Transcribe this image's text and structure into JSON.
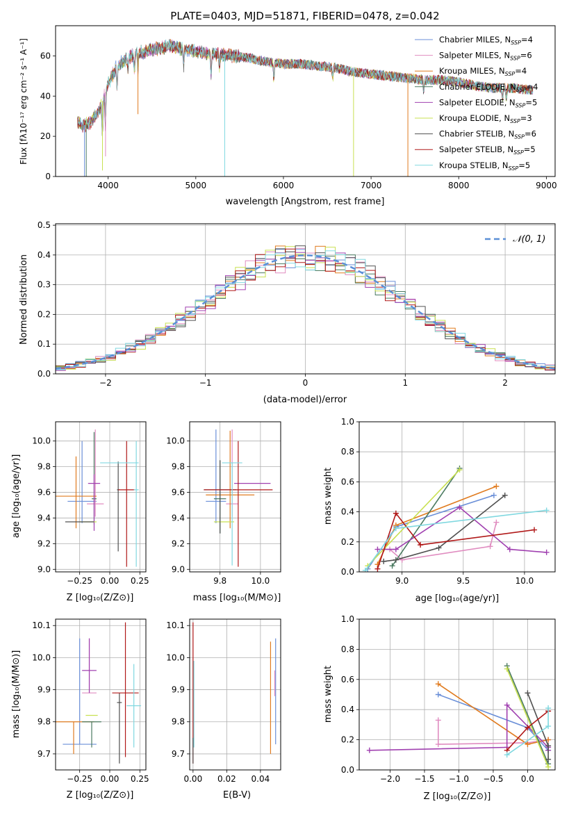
{
  "colors": {
    "series": [
      "#6a8fd8",
      "#e08cc0",
      "#e07b1f",
      "#4a7a60",
      "#a040b0",
      "#c8e050",
      "#505050",
      "#b01818",
      "#80d8e0"
    ]
  },
  "chart_data": [
    {
      "id": "spectrum",
      "type": "line",
      "title": "PLATE=0403, MJD=51871, FIBERID=0478, z=0.042",
      "xlabel": "wavelength [Angstrom, rest frame]",
      "ylabel": "Flux [fλ10⁻¹⁷ erg cm⁻² s⁻¹ A⁻¹]",
      "xlim": [
        3400,
        9100
      ],
      "ylim": [
        0,
        75
      ],
      "xticks": [
        4000,
        5000,
        6000,
        7000,
        8000,
        9000
      ],
      "yticks": [
        0,
        20,
        40,
        60
      ],
      "grid": false,
      "legend_position": "upper-right",
      "continuum": {
        "x": [
          3650,
          3700,
          3800,
          3900,
          4000,
          4100,
          4200,
          4300,
          4400,
          4500,
          4600,
          4700,
          4800,
          4900,
          5000,
          5200,
          5400,
          5600,
          5800,
          6000,
          6200,
          6400,
          6600,
          6800,
          7000,
          7200,
          7400,
          7600,
          7800,
          8000,
          8200,
          8400,
          8600,
          8850
        ],
        "y": [
          28,
          25,
          27,
          33,
          46,
          55,
          58,
          61,
          62,
          63,
          64,
          65,
          64,
          63,
          62,
          61,
          60,
          59,
          57,
          56,
          56,
          55,
          54,
          52,
          51,
          50,
          49,
          48,
          48,
          47,
          45,
          44,
          44,
          43
        ]
      },
      "dips": [
        {
          "x": 3730,
          "y": 0,
          "series": 0
        },
        {
          "x": 3750,
          "y": 0,
          "series": 3
        },
        {
          "x": 3935,
          "y": 3,
          "series": 5
        },
        {
          "x": 3970,
          "y": 10,
          "series": 1
        },
        {
          "x": 4340,
          "y": 31,
          "series": 2
        },
        {
          "x": 5330,
          "y": 0,
          "series": 8
        },
        {
          "x": 6800,
          "y": 0,
          "series": 5
        },
        {
          "x": 7420,
          "y": 0,
          "series": 2
        }
      ],
      "series": [
        {
          "name": "Chabrier MILES, N_SSP=4"
        },
        {
          "name": "Salpeter MILES, N_SSP=6"
        },
        {
          "name": "Kroupa MILES, N_SSP=4"
        },
        {
          "name": "Chabrier ELODIE, N_SSP=4"
        },
        {
          "name": "Salpeter ELODIE, N_SSP=5"
        },
        {
          "name": "Kroupa ELODIE, N_SSP=3"
        },
        {
          "name": "Chabrier STELIB, N_SSP=6"
        },
        {
          "name": "Salpeter STELIB, N_SSP=5"
        },
        {
          "name": "Kroupa STELIB, N_SSP=5"
        }
      ],
      "legend": [
        {
          "label": "Chabrier MILES, N",
          "sub": "SSP",
          "val": "=4"
        },
        {
          "label": "Salpeter MILES, N",
          "sub": "SSP",
          "val": "=6"
        },
        {
          "label": "Kroupa MILES, N",
          "sub": "SSP",
          "val": "=4"
        },
        {
          "label": "Chabrier ELODIE, N",
          "sub": "SSP",
          "val": "=4"
        },
        {
          "label": "Salpeter ELODIE, N",
          "sub": "SSP",
          "val": "=5"
        },
        {
          "label": "Kroupa ELODIE, N",
          "sub": "SSP",
          "val": "=3"
        },
        {
          "label": "Chabrier STELIB, N",
          "sub": "SSP",
          "val": "=6"
        },
        {
          "label": "Salpeter STELIB, N",
          "sub": "SSP",
          "val": "=5"
        },
        {
          "label": "Kroupa STELIB, N",
          "sub": "SSP",
          "val": "=5"
        }
      ]
    },
    {
      "id": "residuals",
      "type": "line",
      "xlabel": "(data-model)/error",
      "ylabel": "Normed distribution",
      "xlim": [
        -2.5,
        2.5
      ],
      "ylim": [
        0,
        0.505
      ],
      "xticks": [
        -2,
        -1,
        0,
        1,
        2
      ],
      "yticks": [
        0.0,
        0.1,
        0.2,
        0.3,
        0.4,
        0.5
      ],
      "grid": true,
      "legend_position": "upper-right",
      "legend": [
        {
          "label": "𝒩(0, 1)"
        }
      ],
      "gaussian": {
        "mu": 0,
        "sigma": 1
      },
      "bin_width": 0.1
    },
    {
      "id": "age-vs-Z",
      "type": "scatter",
      "xlabel": "Z [log₁₀(Z/Z⊙)]",
      "ylabel": "age  [log₁₀(age/yr)]",
      "xlim": [
        -0.45,
        0.3
      ],
      "ylim": [
        8.98,
        10.15
      ],
      "xticks": [
        -0.25,
        0.0,
        0.25
      ],
      "yticks": [
        9.0,
        9.2,
        9.4,
        9.6,
        9.8,
        10.0
      ],
      "grid": true,
      "points": [
        {
          "x": -0.23,
          "xe": 0.12,
          "y": 9.53,
          "ye_lo": 0.17,
          "ye_hi": 0.47,
          "series": 0
        },
        {
          "x": -0.12,
          "xe": 0.07,
          "y": 9.51,
          "ye_lo": 0.1,
          "ye_hi": 0.58,
          "series": 1
        },
        {
          "x": -0.28,
          "xe": 0.17,
          "y": 9.57,
          "ye_lo": 0.25,
          "ye_hi": 0.31,
          "series": 2
        },
        {
          "x": -0.13,
          "xe": 0.02,
          "y": 9.55,
          "ye_lo": 0.2,
          "ye_hi": 0.52,
          "series": 3
        },
        {
          "x": -0.13,
          "xe": 0.05,
          "y": 9.67,
          "ye_lo": 0.37,
          "ye_hi": 0.07,
          "series": 4
        },
        {
          "x": -0.18,
          "xe": 0.07,
          "y": 9.37,
          "ye_lo": 0.0,
          "ye_hi": 0.0,
          "series": 5
        },
        {
          "x": -0.25,
          "xe": 0.12,
          "y": 9.37,
          "ye_lo": 0.0,
          "ye_hi": 0.0,
          "series": 6
        },
        {
          "x": 0.07,
          "xe": 0.01,
          "y": 9.62,
          "ye_lo": 0.48,
          "ye_hi": 0.22,
          "series": 6
        },
        {
          "x": 0.14,
          "xe": 0.07,
          "y": 9.62,
          "ye_lo": 0.6,
          "ye_hi": 0.38,
          "series": 7
        },
        {
          "x": 0.08,
          "xe": 0.16,
          "y": 9.83,
          "ye_lo": 0.0,
          "ye_hi": 0.0,
          "series": 8
        },
        {
          "x": 0.22,
          "xe": 0.02,
          "y": 9.62,
          "ye_lo": 0.6,
          "ye_hi": 0.38,
          "series": 8
        }
      ]
    },
    {
      "id": "age-vs-mass",
      "type": "scatter",
      "xlabel": "mass [log₁₀(M/M⊙)]",
      "ylabel": "",
      "xlim": [
        9.65,
        10.1
      ],
      "ylim": [
        8.98,
        10.15
      ],
      "xticks": [
        9.8,
        10.0
      ],
      "yticks": [
        9.0,
        9.2,
        9.4,
        9.6,
        9.8,
        10.0
      ],
      "grid": true,
      "points": [
        {
          "x": 9.78,
          "xe": 0.05,
          "y": 9.53,
          "ye_lo": 0.17,
          "ye_hi": 0.56,
          "series": 0
        },
        {
          "x": 9.86,
          "xe": 0.03,
          "y": 9.51,
          "ye_lo": 0.1,
          "ye_hi": 0.58,
          "series": 1
        },
        {
          "x": 9.85,
          "xe": 0.12,
          "y": 9.58,
          "ye_lo": 0.26,
          "ye_hi": 0.5,
          "series": 2
        },
        {
          "x": 9.8,
          "xe": 0.03,
          "y": 9.55,
          "ye_lo": 0.27,
          "ye_hi": 0.3,
          "series": 3
        },
        {
          "x": 9.96,
          "xe": 0.09,
          "y": 9.67,
          "ye_lo": 0.0,
          "ye_hi": 0.0,
          "series": 4
        },
        {
          "x": 9.82,
          "xe": 0.05,
          "y": 9.37,
          "ye_lo": 0.0,
          "ye_hi": 0.0,
          "series": 5
        },
        {
          "x": 9.8,
          "xe": 0.08,
          "y": 9.62,
          "ye_lo": 0.34,
          "ye_hi": 0.23,
          "series": 6
        },
        {
          "x": 9.89,
          "xe": 0.17,
          "y": 9.62,
          "ye_lo": 0.6,
          "ye_hi": 0.38,
          "series": 7
        },
        {
          "x": 9.86,
          "xe": 0.05,
          "y": 9.83,
          "ye_lo": 0.8,
          "ye_hi": 0.0,
          "series": 8
        }
      ]
    },
    {
      "id": "weight-vs-age",
      "type": "line",
      "xlabel": "age  [log₁₀(age/yr)]",
      "ylabel": "mass weight",
      "xlim": [
        8.65,
        10.25
      ],
      "ylim": [
        0,
        1
      ],
      "xticks": [
        9.0,
        9.5,
        10.0
      ],
      "yticks": [
        0.0,
        0.2,
        0.4,
        0.6,
        0.8,
        1.0
      ],
      "grid": true,
      "series": [
        {
          "x": [
            8.72,
            8.95,
            9.75
          ],
          "y": [
            0.02,
            0.3,
            0.51
          ],
          "ci": 0
        },
        {
          "x": [
            8.9,
            9.0,
            9.72,
            9.77
          ],
          "y": [
            0.15,
            0.08,
            0.17,
            0.33
          ],
          "ci": 1
        },
        {
          "x": [
            8.8,
            8.95,
            9.77
          ],
          "y": [
            0.05,
            0.31,
            0.57
          ],
          "ci": 2
        },
        {
          "x": [
            8.92,
            9.47
          ],
          "y": [
            0.04,
            0.69
          ],
          "ci": 3
        },
        {
          "x": [
            8.8,
            8.95,
            9.47,
            9.88,
            10.18
          ],
          "y": [
            0.15,
            0.15,
            0.43,
            0.15,
            0.13
          ],
          "ci": 4
        },
        {
          "x": [
            8.72,
            9.47
          ],
          "y": [
            0.04,
            0.68
          ],
          "ci": 5
        },
        {
          "x": [
            8.85,
            8.95,
            9.3,
            9.84
          ],
          "y": [
            0.07,
            0.08,
            0.16,
            0.51
          ],
          "ci": 6
        },
        {
          "x": [
            8.8,
            8.95,
            9.15,
            10.08
          ],
          "y": [
            0.02,
            0.39,
            0.18,
            0.28
          ],
          "ci": 7
        },
        {
          "x": [
            8.7,
            8.95,
            10.18
          ],
          "y": [
            0.01,
            0.29,
            0.41
          ],
          "ci": 8
        }
      ]
    },
    {
      "id": "mass-vs-Z",
      "type": "scatter",
      "xlabel": "Z [log₁₀(Z/Z⊙)]",
      "ylabel": "mass [log₁₀(M/M⊙)]",
      "xlim": [
        -0.45,
        0.3
      ],
      "ylim": [
        9.65,
        10.12
      ],
      "xticks": [
        -0.25,
        0.0,
        0.25
      ],
      "yticks": [
        9.7,
        9.8,
        9.9,
        10.0,
        10.1
      ],
      "grid": true,
      "points": [
        {
          "x": -0.25,
          "xe": 0.14,
          "y": 9.73,
          "ye_lo": 0.0,
          "ye_hi": 0.33,
          "series": 0
        },
        {
          "x": -0.17,
          "xe": 0.06,
          "y": 9.89,
          "ye_lo": 0.0,
          "ye_hi": 0.17,
          "series": 1
        },
        {
          "x": -0.3,
          "xe": 0.17,
          "y": 9.8,
          "ye_lo": 0.1,
          "ye_hi": 0.0,
          "series": 2
        },
        {
          "x": -0.15,
          "xe": 0.08,
          "y": 9.8,
          "ye_lo": 0.08,
          "ye_hi": 0.0,
          "series": 3
        },
        {
          "x": -0.17,
          "xe": 0.06,
          "y": 9.96,
          "ye_lo": 0.07,
          "ye_hi": 0.1,
          "series": 4
        },
        {
          "x": -0.15,
          "xe": 0.05,
          "y": 9.82,
          "ye_lo": 0.0,
          "ye_hi": 0.0,
          "series": 5
        },
        {
          "x": 0.08,
          "xe": 0.02,
          "y": 9.86,
          "ye_lo": 0.19,
          "ye_hi": 0.03,
          "series": 6
        },
        {
          "x": 0.13,
          "xe": 0.11,
          "y": 9.89,
          "ye_lo": 0.2,
          "ye_hi": 0.22,
          "series": 7
        },
        {
          "x": 0.2,
          "xe": 0.06,
          "y": 9.85,
          "ye_lo": 0.13,
          "ye_hi": 0.13,
          "series": 8
        }
      ]
    },
    {
      "id": "mass-vs-ebv",
      "type": "scatter",
      "xlabel": "E(B-V)",
      "ylabel": "",
      "xlim": [
        -0.002,
        0.052
      ],
      "ylim": [
        9.65,
        10.12
      ],
      "xticks": [
        0.0,
        0.02,
        0.04
      ],
      "yticks": [
        9.7,
        9.8,
        9.9,
        10.0,
        10.1
      ],
      "grid": true,
      "points": [
        {
          "x": 0.0,
          "y_lo": 9.67,
          "y_hi": 10.11,
          "series": 7
        },
        {
          "x": 0.0005,
          "y_lo": 9.72,
          "y_hi": 9.99,
          "series": 8
        },
        {
          "x": 0.0,
          "y_lo": 9.67,
          "y_hi": 9.75,
          "series": 6
        },
        {
          "x": 0.046,
          "y_lo": 9.7,
          "y_hi": 10.05,
          "series": 2
        },
        {
          "x": 0.049,
          "y_lo": 9.73,
          "y_hi": 10.06,
          "series": 0
        },
        {
          "x": 0.0485,
          "y_lo": 9.88,
          "y_hi": 9.96,
          "series": 1
        }
      ]
    },
    {
      "id": "weight-vs-Z",
      "type": "line",
      "xlabel": "Z [log₁₀(Z/Z⊙)]",
      "ylabel": "mass weight",
      "xlim": [
        -2.45,
        0.4
      ],
      "ylim": [
        0,
        1
      ],
      "xticks": [
        -2.0,
        -1.5,
        -1.0,
        -0.5,
        0.0
      ],
      "yticks": [
        0.0,
        0.2,
        0.4,
        0.6,
        0.8,
        1.0
      ],
      "grid": true,
      "series": [
        {
          "x": [
            -1.3,
            0.0,
            0.3
          ],
          "y": [
            0.5,
            0.28,
            0.13
          ],
          "ci": 0
        },
        {
          "x": [
            -1.3,
            -1.3,
            0.0,
            0.3
          ],
          "y": [
            0.33,
            0.17,
            0.18,
            0.2
          ],
          "ci": 1
        },
        {
          "x": [
            -1.3,
            0.0,
            0.3
          ],
          "y": [
            0.57,
            0.17,
            0.2
          ],
          "ci": 2
        },
        {
          "x": [
            -0.3,
            0.3
          ],
          "y": [
            0.69,
            0.04
          ],
          "ci": 3
        },
        {
          "x": [
            -2.3,
            -0.3,
            -0.3,
            0.3,
            0.3
          ],
          "y": [
            0.13,
            0.15,
            0.43,
            0.15,
            0.13
          ],
          "ci": 4
        },
        {
          "x": [
            -0.3,
            0.3
          ],
          "y": [
            0.67,
            0.02
          ],
          "ci": 5
        },
        {
          "x": [
            0.0,
            0.3,
            0.3
          ],
          "y": [
            0.51,
            0.16,
            0.07
          ],
          "ci": 6
        },
        {
          "x": [
            -0.3,
            0.0,
            0.3
          ],
          "y": [
            0.13,
            0.28,
            0.39
          ],
          "ci": 7
        },
        {
          "x": [
            -0.3,
            0.3,
            0.3
          ],
          "y": [
            0.1,
            0.29,
            0.41
          ],
          "ci": 8
        }
      ]
    }
  ]
}
